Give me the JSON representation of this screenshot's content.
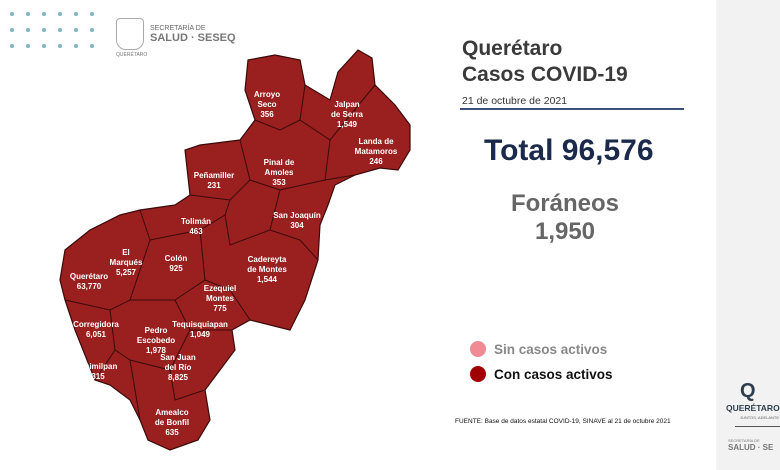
{
  "header_logo": {
    "line1": "SECRETARÍA DE",
    "line2": "SALUD · SESEQ",
    "sub": "QUERÉTARO"
  },
  "title": {
    "line1": "Querétaro",
    "line2": "Casos COVID-19",
    "date": "21 de octubre de 2021"
  },
  "total": "Total 96,576",
  "foraneos": {
    "label": "Foráneos",
    "value": "1,950"
  },
  "legend": [
    {
      "label": "Sin casos activos",
      "color": "#f08a95"
    },
    {
      "label": "Con casos activos",
      "color": "#a00000"
    }
  ],
  "source": "FUENTE: Base de datos estatal COVID-19, SINAVE  al 21 de octubre 2021",
  "colors": {
    "active": "#9a1f1f",
    "border": "#3a0a0a"
  },
  "side_logo": {
    "q": "Q",
    "name": "QUERÉTARO",
    "tagline": "JUNTOS, ADELANTE",
    "seseq_small": "SECRETARÍA DE",
    "seseq": "SALUD · SE"
  },
  "municipalities": [
    {
      "name": "Arroyo Seco",
      "lines": [
        "Arroyo",
        "Seco"
      ],
      "cases": "356"
    },
    {
      "name": "Jalpan de Serra",
      "lines": [
        "Jalpan",
        "de Serra"
      ],
      "cases": "1,549"
    },
    {
      "name": "Landa de Matamoros",
      "lines": [
        "Landa de",
        "Matamoros"
      ],
      "cases": "246"
    },
    {
      "name": "Pinal de Amoles",
      "lines": [
        "Pinal de",
        "Amoles"
      ],
      "cases": "353"
    },
    {
      "name": "Peñamiller",
      "lines": [
        "Peñamiller"
      ],
      "cases": "231"
    },
    {
      "name": "San Joaquín",
      "lines": [
        "San Joaquín"
      ],
      "cases": "304"
    },
    {
      "name": "Tolimán",
      "lines": [
        "Tolimán"
      ],
      "cases": "463"
    },
    {
      "name": "Cadereyta de Montes",
      "lines": [
        "Cadereyta",
        "de Montes"
      ],
      "cases": "1,544"
    },
    {
      "name": "El Marqués",
      "lines": [
        "El",
        "Marqués"
      ],
      "cases": "5,257"
    },
    {
      "name": "Colón",
      "lines": [
        "Colón"
      ],
      "cases": "925"
    },
    {
      "name": "Querétaro",
      "lines": [
        "Querétaro"
      ],
      "cases": "63,770"
    },
    {
      "name": "Ezequiel Montes",
      "lines": [
        "Ezequiel",
        "Montes"
      ],
      "cases": "775"
    },
    {
      "name": "Corregidora",
      "lines": [
        "Corregidora"
      ],
      "cases": "6,051"
    },
    {
      "name": "Tequisquiapan",
      "lines": [
        "Tequisquiapan"
      ],
      "cases": "1,049"
    },
    {
      "name": "Pedro Escobedo",
      "lines": [
        "Pedro",
        "Escobedo"
      ],
      "cases": "1,978"
    },
    {
      "name": "Huimilpan",
      "lines": [
        "Huimilpan"
      ],
      "cases": "315"
    },
    {
      "name": "San Juan del Río",
      "lines": [
        "San Juan",
        "del Río"
      ],
      "cases": "8,825"
    },
    {
      "name": "Amealco de Bonfil",
      "lines": [
        "Amealco",
        "de Bonfil"
      ],
      "cases": "635"
    }
  ]
}
